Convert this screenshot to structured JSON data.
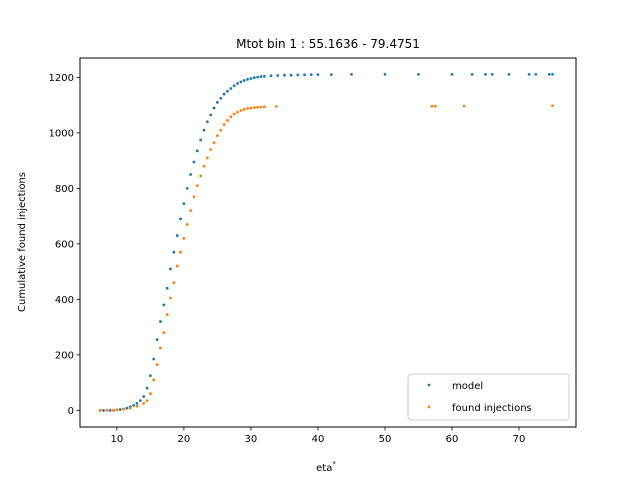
{
  "chart_data": {
    "type": "scatter",
    "title": "Mtot bin 1 : 55.1636 - 79.4751",
    "xlabel": "eta",
    "xlabel_superscript": "*",
    "ylabel": "Cumulative found injections",
    "xlim": [
      4.5,
      78.5
    ],
    "ylim": [
      -60,
      1270
    ],
    "xticks": [
      10,
      20,
      30,
      40,
      50,
      60,
      70
    ],
    "yticks": [
      0,
      200,
      400,
      600,
      800,
      1000,
      1200
    ],
    "grid": false,
    "legend_position": "lower-right",
    "series": [
      {
        "name": "model",
        "color": "#1f77b4",
        "x": [
          7.5,
          8.0,
          8.5,
          9.0,
          9.5,
          10.0,
          10.5,
          11.0,
          11.5,
          12.0,
          12.5,
          13.0,
          13.5,
          14.0,
          14.5,
          15.0,
          15.5,
          16.0,
          16.5,
          17.0,
          17.5,
          18.0,
          18.5,
          19.0,
          19.5,
          20.0,
          20.5,
          21.0,
          21.5,
          22.0,
          22.5,
          23.0,
          23.5,
          24.0,
          24.5,
          25.0,
          25.5,
          26.0,
          26.5,
          27.0,
          27.5,
          28.0,
          28.5,
          29.0,
          29.5,
          30.0,
          30.5,
          31.0,
          31.5,
          32.0,
          33.0,
          34.0,
          35.0,
          36.0,
          37.0,
          38.0,
          39.0,
          40.0,
          42.0,
          45.0,
          50.0,
          55.0,
          60.0,
          63.0,
          65.0,
          66.0,
          68.5,
          71.5,
          72.5,
          74.5,
          75.0
        ],
        "y": [
          0,
          0,
          0,
          0,
          0,
          2,
          3,
          5,
          8,
          13,
          18,
          25,
          35,
          50,
          80,
          125,
          185,
          255,
          320,
          380,
          440,
          510,
          570,
          630,
          690,
          745,
          800,
          850,
          895,
          935,
          975,
          1010,
          1040,
          1065,
          1090,
          1110,
          1125,
          1140,
          1150,
          1160,
          1170,
          1178,
          1184,
          1189,
          1193,
          1196,
          1199,
          1201,
          1203,
          1204,
          1206,
          1207,
          1208,
          1208,
          1209,
          1209,
          1210,
          1210,
          1210,
          1211,
          1211,
          1211,
          1211,
          1211,
          1211,
          1211,
          1211,
          1211,
          1211,
          1211,
          1211
        ]
      },
      {
        "name": "found injections",
        "color": "#ff7f0e",
        "x": [
          7.5,
          8.5,
          9.5,
          10.0,
          11.0,
          12.0,
          13.0,
          14.0,
          14.5,
          15.0,
          15.5,
          16.0,
          16.5,
          17.0,
          17.5,
          18.0,
          18.5,
          19.0,
          19.5,
          20.0,
          20.5,
          21.0,
          21.5,
          22.0,
          22.5,
          23.0,
          23.5,
          24.0,
          24.5,
          25.0,
          25.5,
          26.0,
          26.5,
          27.0,
          27.5,
          28.0,
          28.5,
          29.0,
          29.5,
          30.0,
          30.5,
          31.0,
          31.5,
          32.0,
          33.8,
          57.0,
          57.5,
          61.8,
          75.0
        ],
        "y": [
          0,
          0,
          1,
          2,
          4,
          8,
          15,
          25,
          35,
          60,
          110,
          165,
          225,
          280,
          345,
          405,
          460,
          520,
          570,
          620,
          670,
          720,
          770,
          810,
          845,
          880,
          910,
          940,
          965,
          990,
          1010,
          1030,
          1045,
          1058,
          1068,
          1075,
          1081,
          1085,
          1088,
          1090,
          1091,
          1092,
          1093,
          1094,
          1095,
          1096,
          1096,
          1097,
          1098
        ]
      }
    ]
  }
}
